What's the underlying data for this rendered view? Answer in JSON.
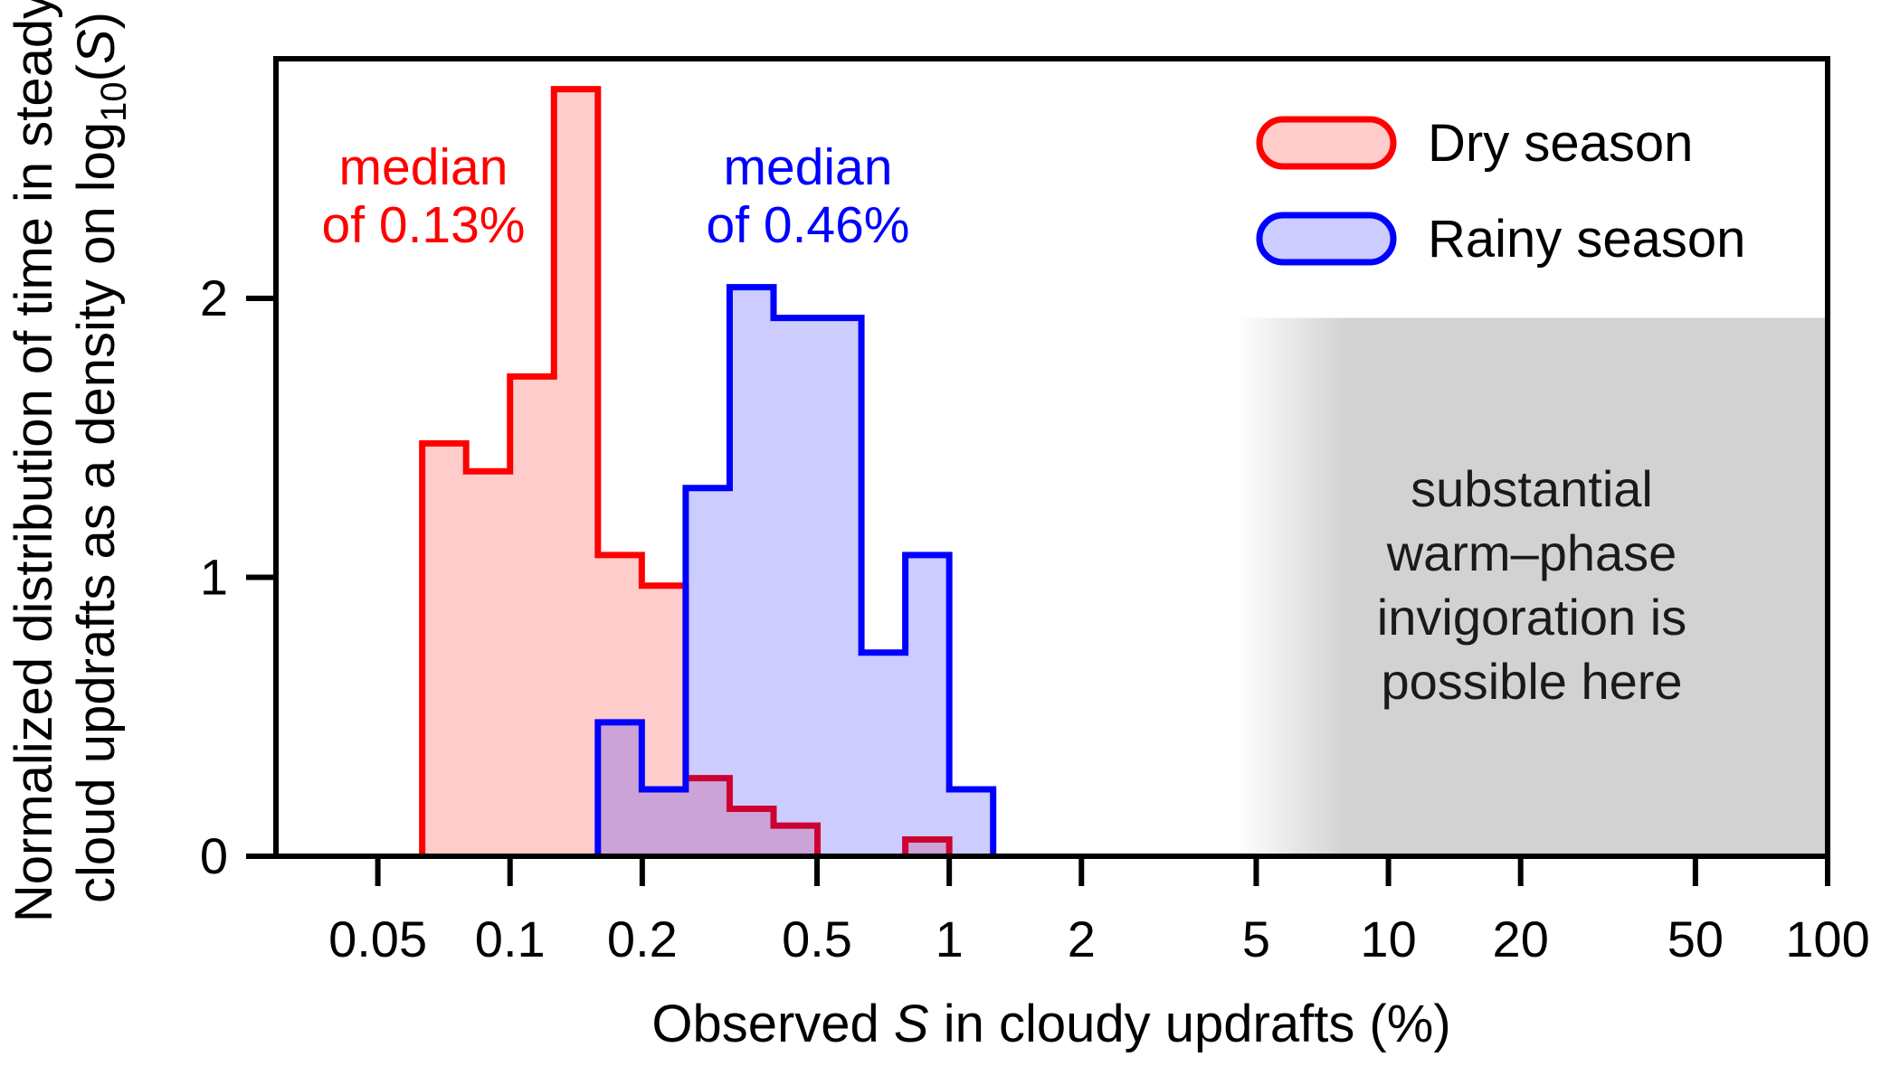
{
  "chart_data": {
    "type": "bar",
    "subtype": "histogram-step",
    "title": "",
    "xlabel": "Observed S in cloudy updrafts (%)",
    "ylabel": "Normalized distribution of time in steady cloud updrafts as a density on log10(S)",
    "x_scale": "log10",
    "xlim": [
      0.029,
      100
    ],
    "ylim": [
      0,
      2.86
    ],
    "grid": "off",
    "legend_position": "top-right-inside",
    "x_ticks": [
      {
        "label": "0.05",
        "value": 0.05
      },
      {
        "label": "0.1",
        "value": 0.1
      },
      {
        "label": "0.2",
        "value": 0.2
      },
      {
        "label": "0.5",
        "value": 0.5
      },
      {
        "label": "1",
        "value": 1
      },
      {
        "label": "2",
        "value": 2
      },
      {
        "label": "5",
        "value": 5
      },
      {
        "label": "10",
        "value": 10
      },
      {
        "label": "20",
        "value": 20
      },
      {
        "label": "50",
        "value": 50
      },
      {
        "label": "100",
        "value": 100
      }
    ],
    "y_ticks": [
      {
        "label": "0",
        "value": 0
      },
      {
        "label": "1",
        "value": 1
      },
      {
        "label": "2",
        "value": 2
      }
    ],
    "series": [
      {
        "name": "Dry season",
        "median_label": [
          "median",
          "of 0.13%"
        ],
        "median_pct": 0.13,
        "stroke": "#ff0000",
        "fill_rgba": "rgba(255,0,0,0.2)",
        "legend_fill": "#ffcccc",
        "bins_log10": [
          [
            -1.2,
            -1.1,
            1.48
          ],
          [
            -1.1,
            -1.0,
            1.38
          ],
          [
            -1.0,
            -0.9,
            1.72
          ],
          [
            -0.9,
            -0.8,
            2.75
          ],
          [
            -0.8,
            -0.7,
            1.08
          ],
          [
            -0.7,
            -0.6,
            0.97
          ],
          [
            -0.6,
            -0.5,
            0.28
          ],
          [
            -0.5,
            -0.4,
            0.17
          ],
          [
            -0.4,
            -0.3,
            0.11
          ],
          [
            -0.1,
            0.0,
            0.06
          ]
        ]
      },
      {
        "name": "Rainy season",
        "median_label": [
          "median",
          "of 0.46%"
        ],
        "median_pct": 0.46,
        "stroke": "#0000ff",
        "fill_rgba": "rgba(0,0,255,0.2)",
        "legend_fill": "#ccccff",
        "bins_log10": [
          [
            -0.8,
            -0.7,
            0.48
          ],
          [
            -0.7,
            -0.6,
            0.24
          ],
          [
            -0.6,
            -0.5,
            1.32
          ],
          [
            -0.5,
            -0.4,
            2.04
          ],
          [
            -0.4,
            -0.3,
            1.93
          ],
          [
            -0.3,
            -0.2,
            1.93
          ],
          [
            -0.2,
            -0.1,
            0.73
          ],
          [
            -0.1,
            0.0,
            1.08
          ],
          [
            0.0,
            0.1,
            0.24
          ]
        ]
      }
    ],
    "shaded_region": {
      "fade_from_s": 4.5,
      "solid_from_s": 8,
      "to_s": 100,
      "top_value": 1.93,
      "color": "#d2d2d2",
      "label_lines": [
        "substantial",
        "warm–phase",
        "invigoration is",
        "possible here"
      ]
    }
  },
  "y_axis_title": {
    "line1": "Normalized distribution of time in steady",
    "line2_prefix": "cloud updrafts as a density on log",
    "line2_sub": "10",
    "line2_open": "(",
    "line2_s": "S",
    "line2_close": ")"
  },
  "x_axis_title": {
    "prefix": "Observed ",
    "s": "S",
    "suffix": " in cloudy updrafts (%)"
  },
  "annotations": {
    "red_median_line1": "median",
    "red_median_line2": "of 0.13%",
    "blue_median_line1": "median",
    "blue_median_line2": "of 0.46%"
  },
  "legend": {
    "dry_label": "Dry season",
    "rainy_label": "Rainy season"
  }
}
